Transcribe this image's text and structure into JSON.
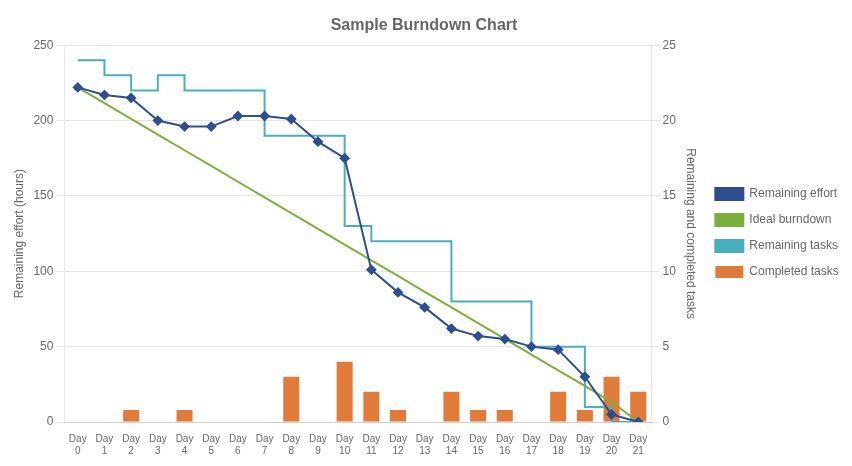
{
  "chart_data": {
    "type": "bar",
    "title": "Sample Burndown Chart",
    "categories": [
      "Day\n0",
      "Day\n1",
      "Day\n2",
      "Day\n3",
      "Day\n4",
      "Day\n5",
      "Day\n6",
      "Day\n7",
      "Day\n8",
      "Day\n9",
      "Day\n10",
      "Day\n11",
      "Day\n12",
      "Day\n13",
      "Day\n14",
      "Day\n15",
      "Day\n16",
      "Day\n17",
      "Day\n18",
      "Day\n19",
      "Day\n20",
      "Day\n21"
    ],
    "ylabel": "Remaining effort (hours)",
    "y2label": "Remaining and completed tasks",
    "ylim": [
      0,
      250
    ],
    "yticks": [
      0,
      50,
      100,
      150,
      200,
      250
    ],
    "y2lim": [
      0,
      25
    ],
    "y2ticks": [
      0,
      5,
      10,
      15,
      20,
      25
    ],
    "grid": true,
    "legend": "right",
    "series": [
      {
        "name": "Completed tasks",
        "type": "bar",
        "color": "#E07B39",
        "values": [
          0,
          0,
          8,
          0,
          8,
          0,
          0,
          0,
          30,
          0,
          40,
          20,
          8,
          0,
          20,
          8,
          8,
          0,
          20,
          8,
          30,
          20
        ]
      },
      {
        "name": "Remaining effort",
        "type": "line",
        "color": "#2E4E8F",
        "marker": "diamond",
        "values": [
          222,
          217,
          215,
          200,
          196,
          196,
          203,
          203,
          201,
          186,
          175,
          101,
          86,
          76,
          62,
          57,
          55,
          50,
          48,
          30,
          5,
          0
        ]
      },
      {
        "name": "Ideal burndown",
        "type": "line",
        "color": "#7DAF3E",
        "values": [
          222,
          211.6,
          201.1,
          190.7,
          180.3,
          169.9,
          159.4,
          149.0,
          138.6,
          128.1,
          117.7,
          107.3,
          96.9,
          86.4,
          76.0,
          65.6,
          55.1,
          44.7,
          34.3,
          23.9,
          13.4,
          0
        ]
      },
      {
        "name": "Remaining tasks",
        "type": "line",
        "color": "#4AAFBD",
        "axis": "y2",
        "line_style": "step",
        "values": [
          24,
          24,
          23,
          22,
          23,
          22,
          22,
          22,
          19,
          19,
          19,
          13,
          12,
          12,
          12,
          8,
          8,
          8,
          5,
          5,
          1,
          0
        ]
      }
    ]
  }
}
